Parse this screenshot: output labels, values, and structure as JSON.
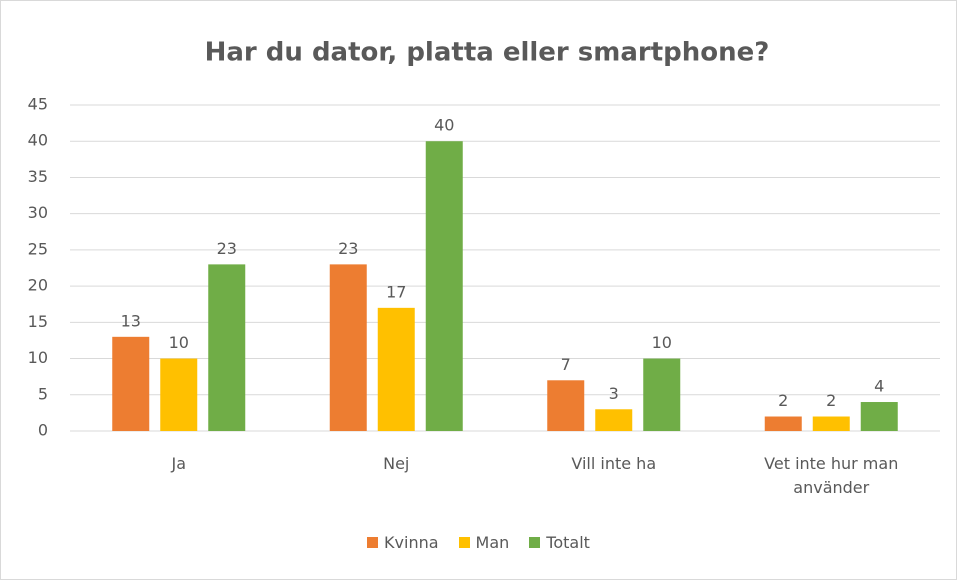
{
  "chart_data": {
    "type": "bar",
    "title": "Har du dator, platta eller smartphone?",
    "categories": [
      "Ja",
      "Nej",
      "Vill inte ha",
      "Vet inte hur man använder"
    ],
    "series": [
      {
        "name": "Kvinna",
        "color": "#ed7d31",
        "values": [
          13,
          23,
          7,
          2
        ]
      },
      {
        "name": "Man",
        "color": "#ffc000",
        "values": [
          10,
          17,
          3,
          2
        ]
      },
      {
        "name": "Totalt",
        "color": "#70ad47",
        "values": [
          23,
          40,
          10,
          4
        ]
      }
    ],
    "ylim": [
      0,
      45
    ],
    "yticks": [
      0,
      5,
      10,
      15,
      20,
      25,
      30,
      35,
      40,
      45
    ],
    "grid": true,
    "legend": "bottom"
  }
}
